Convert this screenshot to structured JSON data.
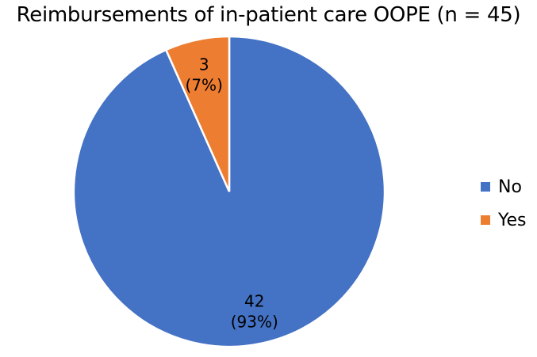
{
  "chart_data": {
    "type": "pie",
    "title": "Reimbursements of in-patient care OOPE (n = 45)",
    "slices": [
      {
        "name": "No",
        "value": 42,
        "percent_label": "(93%)",
        "color": "#4472C4"
      },
      {
        "name": "Yes",
        "value": 3,
        "percent_label": "(7%)",
        "color": "#ED7D31"
      }
    ],
    "legend_position": "right",
    "start_angle_deg": 0,
    "direction": "clockwise"
  }
}
